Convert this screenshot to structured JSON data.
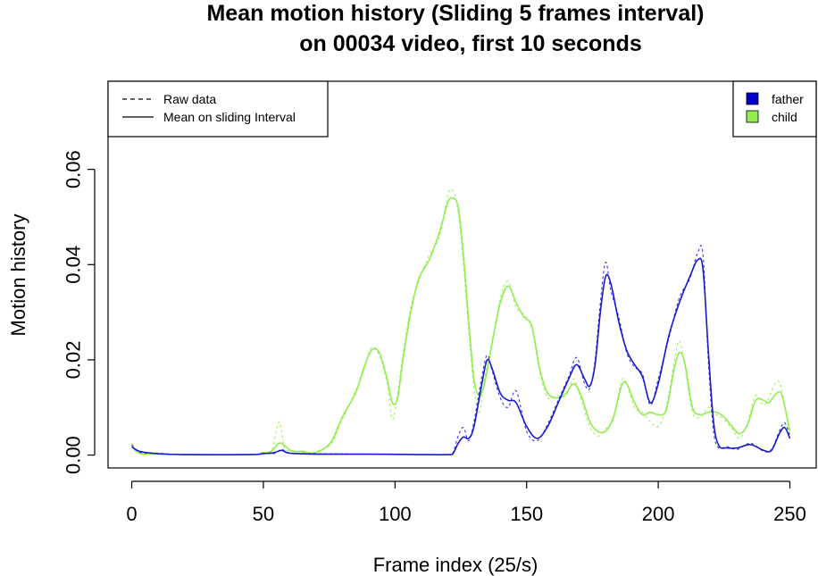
{
  "chart_data": {
    "type": "line",
    "title": [
      "Mean motion history (Sliding 5 frames interval)",
      "on 00034 video, first 10 seconds"
    ],
    "xlabel": "Frame index (25/s)",
    "ylabel": "Motion history",
    "xlim": [
      -9,
      260
    ],
    "ylim": [
      -0.0027,
      0.0785
    ],
    "x_ticks": [
      0,
      50,
      100,
      150,
      200,
      250
    ],
    "x_tick_labels": [
      "0",
      "50",
      "100",
      "150",
      "200",
      "250"
    ],
    "y_ticks": [
      0,
      0.02,
      0.04,
      0.06
    ],
    "y_tick_labels": [
      "0.00",
      "0.02",
      "0.04",
      "0.06"
    ],
    "grid": false,
    "line_style_legend": {
      "position": "top-left",
      "entries": [
        {
          "label": "Raw data",
          "style": "dashed"
        },
        {
          "label": "Mean on sliding Interval",
          "style": "solid"
        }
      ]
    },
    "color_legend": {
      "position": "top-right",
      "entries": [
        {
          "label": "father",
          "color": "#0000cc"
        },
        {
          "label": "child",
          "color": "#90ee50"
        }
      ]
    },
    "series": [
      {
        "name": "father",
        "color": "#1a1ad0",
        "mean": [
          [
            0,
            0.0018
          ],
          [
            3,
            0.0008
          ],
          [
            10,
            0.0003
          ],
          [
            20,
            0.0001
          ],
          [
            45,
            0.0001
          ],
          [
            50,
            0.0003
          ],
          [
            54,
            0.0005
          ],
          [
            57,
            0.001
          ],
          [
            60,
            0.0004
          ],
          [
            70,
            0.0002
          ],
          [
            90,
            0.0002
          ],
          [
            110,
            0.0001
          ],
          [
            120,
            0.0001
          ],
          [
            122,
            0.0003
          ],
          [
            124,
            0.0025
          ],
          [
            126,
            0.0038
          ],
          [
            128,
            0.0035
          ],
          [
            130,
            0.006
          ],
          [
            133,
            0.015
          ],
          [
            135,
            0.02
          ],
          [
            137,
            0.018
          ],
          [
            140,
            0.013
          ],
          [
            143,
            0.0115
          ],
          [
            146,
            0.011
          ],
          [
            150,
            0.006
          ],
          [
            154,
            0.0035
          ],
          [
            158,
            0.006
          ],
          [
            162,
            0.011
          ],
          [
            166,
            0.016
          ],
          [
            169,
            0.019
          ],
          [
            172,
            0.016
          ],
          [
            174,
            0.0145
          ],
          [
            176,
            0.019
          ],
          [
            178,
            0.03
          ],
          [
            180,
            0.0375
          ],
          [
            182,
            0.036
          ],
          [
            185,
            0.028
          ],
          [
            188,
            0.022
          ],
          [
            191,
            0.019
          ],
          [
            194,
            0.0165
          ],
          [
            197,
            0.011
          ],
          [
            200,
            0.015
          ],
          [
            204,
            0.025
          ],
          [
            208,
            0.032
          ],
          [
            212,
            0.0375
          ],
          [
            215,
            0.041
          ],
          [
            217,
            0.039
          ],
          [
            219,
            0.022
          ],
          [
            221,
            0.007
          ],
          [
            223,
            0.002
          ],
          [
            226,
            0.0015
          ],
          [
            230,
            0.0015
          ],
          [
            235,
            0.0022
          ],
          [
            240,
            0.001
          ],
          [
            243,
            0.001
          ],
          [
            246,
            0.0045
          ],
          [
            248,
            0.0058
          ],
          [
            250,
            0.0035
          ]
        ],
        "raw": [
          [
            0,
            0.0022
          ],
          [
            3,
            0.0006
          ],
          [
            10,
            0.0004
          ],
          [
            20,
            0.0001
          ],
          [
            45,
            0.0001
          ],
          [
            50,
            0.0004
          ],
          [
            54,
            0.0003
          ],
          [
            57,
            0.0012
          ],
          [
            60,
            0.0004
          ],
          [
            70,
            0.0003
          ],
          [
            90,
            0.0002
          ],
          [
            110,
            0.0001
          ],
          [
            120,
            0.0001
          ],
          [
            122,
            0.0005
          ],
          [
            124,
            0.004
          ],
          [
            126,
            0.0058
          ],
          [
            128,
            0.003
          ],
          [
            130,
            0.007
          ],
          [
            133,
            0.0165
          ],
          [
            135,
            0.021
          ],
          [
            137,
            0.0175
          ],
          [
            140,
            0.012
          ],
          [
            143,
            0.01
          ],
          [
            146,
            0.0135
          ],
          [
            150,
            0.005
          ],
          [
            154,
            0.003
          ],
          [
            158,
            0.0065
          ],
          [
            162,
            0.0115
          ],
          [
            166,
            0.0165
          ],
          [
            169,
            0.0205
          ],
          [
            172,
            0.015
          ],
          [
            174,
            0.014
          ],
          [
            176,
            0.02
          ],
          [
            178,
            0.032
          ],
          [
            180,
            0.0405
          ],
          [
            182,
            0.0345
          ],
          [
            185,
            0.029
          ],
          [
            188,
            0.0215
          ],
          [
            191,
            0.0185
          ],
          [
            194,
            0.017
          ],
          [
            197,
            0.0105
          ],
          [
            200,
            0.016
          ],
          [
            204,
            0.0245
          ],
          [
            208,
            0.033
          ],
          [
            212,
            0.037
          ],
          [
            215,
            0.0425
          ],
          [
            217,
            0.042
          ],
          [
            219,
            0.02
          ],
          [
            221,
            0.005
          ],
          [
            223,
            0.0015
          ],
          [
            226,
            0.0018
          ],
          [
            230,
            0.0012
          ],
          [
            235,
            0.0025
          ],
          [
            240,
            0.0008
          ],
          [
            243,
            0.0012
          ],
          [
            246,
            0.005
          ],
          [
            248,
            0.0068
          ],
          [
            250,
            0.004
          ]
        ]
      },
      {
        "name": "child",
        "color": "#90ee50",
        "mean": [
          [
            0,
            0.0018
          ],
          [
            3,
            0.0004
          ],
          [
            10,
            0.0002
          ],
          [
            20,
            0.0001
          ],
          [
            45,
            0.0001
          ],
          [
            50,
            0.0005
          ],
          [
            53,
            0.0008
          ],
          [
            56,
            0.0025
          ],
          [
            58,
            0.002
          ],
          [
            61,
            0.0008
          ],
          [
            65,
            0.0008
          ],
          [
            68,
            0.0004
          ],
          [
            72,
            0.001
          ],
          [
            76,
            0.003
          ],
          [
            80,
            0.008
          ],
          [
            85,
            0.013
          ],
          [
            88,
            0.018
          ],
          [
            91,
            0.022
          ],
          [
            94,
            0.0215
          ],
          [
            97,
            0.016
          ],
          [
            99,
            0.011
          ],
          [
            101,
            0.012
          ],
          [
            103,
            0.02
          ],
          [
            106,
            0.03
          ],
          [
            109,
            0.037
          ],
          [
            113,
            0.041
          ],
          [
            117,
            0.047
          ],
          [
            120,
            0.053
          ],
          [
            122,
            0.054
          ],
          [
            124,
            0.052
          ],
          [
            126,
            0.042
          ],
          [
            128,
            0.028
          ],
          [
            130,
            0.016
          ],
          [
            132,
            0.0125
          ],
          [
            134,
            0.015
          ],
          [
            137,
            0.024
          ],
          [
            140,
            0.032
          ],
          [
            143,
            0.0355
          ],
          [
            146,
            0.032
          ],
          [
            149,
            0.029
          ],
          [
            152,
            0.027
          ],
          [
            155,
            0.018
          ],
          [
            158,
            0.013
          ],
          [
            162,
            0.012
          ],
          [
            165,
            0.013
          ],
          [
            168,
            0.015
          ],
          [
            171,
            0.012
          ],
          [
            174,
            0.007
          ],
          [
            177,
            0.005
          ],
          [
            180,
            0.005
          ],
          [
            183,
            0.008
          ],
          [
            186,
            0.0145
          ],
          [
            188,
            0.015
          ],
          [
            191,
            0.011
          ],
          [
            194,
            0.0085
          ],
          [
            197,
            0.009
          ],
          [
            200,
            0.0085
          ],
          [
            203,
            0.0095
          ],
          [
            206,
            0.018
          ],
          [
            208,
            0.0215
          ],
          [
            210,
            0.0195
          ],
          [
            213,
            0.01
          ],
          [
            216,
            0.0085
          ],
          [
            219,
            0.009
          ],
          [
            222,
            0.009
          ],
          [
            225,
            0.008
          ],
          [
            228,
            0.006
          ],
          [
            231,
            0.0045
          ],
          [
            234,
            0.0065
          ],
          [
            237,
            0.0115
          ],
          [
            240,
            0.0115
          ],
          [
            242,
            0.011
          ],
          [
            245,
            0.013
          ],
          [
            247,
            0.0125
          ],
          [
            250,
            0.005
          ]
        ],
        "raw": [
          [
            0,
            0.0025
          ],
          [
            3,
            0.0003
          ],
          [
            10,
            0.0002
          ],
          [
            20,
            0.0001
          ],
          [
            45,
            0.0001
          ],
          [
            50,
            0.0007
          ],
          [
            53,
            0.0006
          ],
          [
            56,
            0.007
          ],
          [
            58,
            0.0015
          ],
          [
            61,
            0.001
          ],
          [
            65,
            0.0006
          ],
          [
            68,
            0.0003
          ],
          [
            72,
            0.0012
          ],
          [
            76,
            0.0025
          ],
          [
            80,
            0.0075
          ],
          [
            85,
            0.0135
          ],
          [
            88,
            0.0175
          ],
          [
            91,
            0.0225
          ],
          [
            94,
            0.021
          ],
          [
            97,
            0.015
          ],
          [
            99,
            0.0075
          ],
          [
            101,
            0.013
          ],
          [
            103,
            0.021
          ],
          [
            106,
            0.031
          ],
          [
            109,
            0.0365
          ],
          [
            113,
            0.042
          ],
          [
            117,
            0.046
          ],
          [
            120,
            0.0545
          ],
          [
            122,
            0.0555
          ],
          [
            124,
            0.051
          ],
          [
            126,
            0.04
          ],
          [
            128,
            0.026
          ],
          [
            130,
            0.014
          ],
          [
            132,
            0.009
          ],
          [
            134,
            0.016
          ],
          [
            137,
            0.0235
          ],
          [
            140,
            0.033
          ],
          [
            143,
            0.0365
          ],
          [
            146,
            0.031
          ],
          [
            149,
            0.0295
          ],
          [
            152,
            0.0265
          ],
          [
            155,
            0.0175
          ],
          [
            158,
            0.012
          ],
          [
            162,
            0.0125
          ],
          [
            165,
            0.0125
          ],
          [
            168,
            0.016
          ],
          [
            171,
            0.011
          ],
          [
            174,
            0.006
          ],
          [
            177,
            0.004
          ],
          [
            180,
            0.0055
          ],
          [
            183,
            0.0075
          ],
          [
            186,
            0.0155
          ],
          [
            188,
            0.015
          ],
          [
            191,
            0.01
          ],
          [
            194,
            0.009
          ],
          [
            197,
            0.007
          ],
          [
            200,
            0.006
          ],
          [
            203,
            0.01
          ],
          [
            206,
            0.0195
          ],
          [
            208,
            0.024
          ],
          [
            210,
            0.019
          ],
          [
            213,
            0.009
          ],
          [
            216,
            0.008
          ],
          [
            219,
            0.01
          ],
          [
            222,
            0.0085
          ],
          [
            225,
            0.0075
          ],
          [
            228,
            0.0055
          ],
          [
            231,
            0.0035
          ],
          [
            234,
            0.007
          ],
          [
            237,
            0.0125
          ],
          [
            240,
            0.0105
          ],
          [
            242,
            0.012
          ],
          [
            245,
            0.0155
          ],
          [
            247,
            0.0135
          ],
          [
            250,
            0.004
          ]
        ]
      }
    ]
  }
}
